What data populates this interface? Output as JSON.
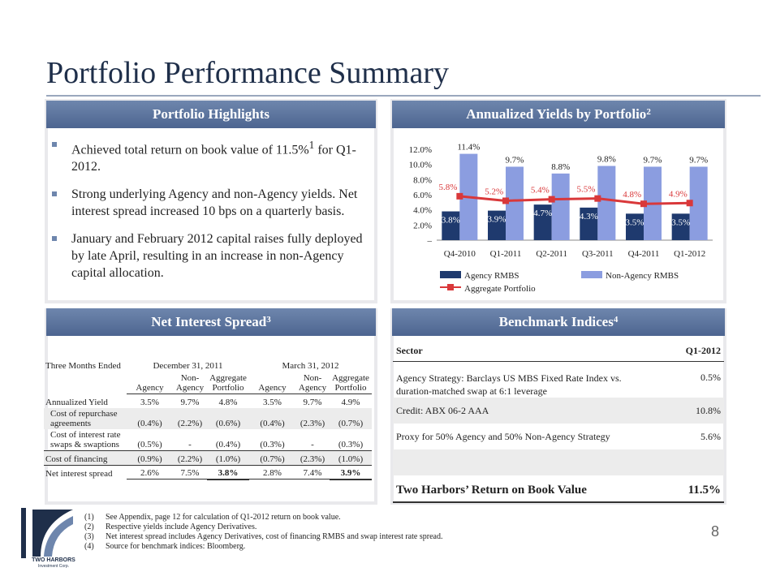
{
  "title": "Portfolio Performance Summary",
  "page_number": "8",
  "highlights": {
    "header": "Portfolio Highlights",
    "bullets": [
      {
        "text": "Achieved total return on book value of 11.5%",
        "sup": "1",
        "tail": " for Q1-2012."
      },
      {
        "text": "Strong underlying Agency and non-Agency  yields. Net interest spread increased 10 bps on a quarterly basis.",
        "sup": "",
        "tail": ""
      },
      {
        "text": "January and February 2012 capital raises fully deployed by late April, resulting in an increase in non-Agency capital allocation.",
        "sup": "",
        "tail": ""
      }
    ]
  },
  "yields": {
    "header": "Annualized Yields by Portfolio",
    "sup": "2"
  },
  "chart_data": {
    "type": "bar",
    "categories": [
      "Q4-2010",
      "Q1-2011",
      "Q2-2011",
      "Q3-2011",
      "Q4-2011",
      "Q1-2012"
    ],
    "series": [
      {
        "name": "Agency RMBS",
        "type": "bar",
        "color": "#1f3a6e",
        "values": [
          3.8,
          3.9,
          4.7,
          4.3,
          3.5,
          3.5
        ],
        "labels": [
          "3.8%",
          "3.9%",
          "4.7%",
          "4.3%",
          "3.5%",
          "3.5%"
        ]
      },
      {
        "name": "Non-Agency RMBS",
        "type": "bar",
        "color": "#8b9de0",
        "values": [
          11.4,
          9.7,
          8.8,
          9.8,
          9.7,
          9.7
        ],
        "labels": [
          "11.4%",
          "9.7%",
          "8.8%",
          "9.8%",
          "9.7%",
          "9.7%"
        ]
      },
      {
        "name": "Aggregate Portfolio",
        "type": "line",
        "color": "#d9383a",
        "values": [
          5.8,
          5.2,
          5.4,
          5.5,
          4.8,
          4.9
        ],
        "labels": [
          "5.8%",
          "5.2%",
          "5.4%",
          "5.5%",
          "4.8%",
          "4.9%"
        ]
      }
    ],
    "yticks": [
      "–",
      "2.0%",
      "4.0%",
      "6.0%",
      "8.0%",
      "10.0%",
      "12.0%"
    ],
    "ylim": [
      0,
      12
    ],
    "legend": "bottom"
  },
  "nis": {
    "header": "Net Interest Spread",
    "sup": "3",
    "period_label": "Three Months Ended",
    "period1": "December 31, 2011",
    "period2": "March 31, 2012",
    "cols": [
      "Agency",
      "Non-Agency",
      "Aggregate Portfolio",
      "Agency",
      "Non-Agency",
      "Aggregate Portfolio"
    ],
    "rows": [
      {
        "label": "Annualized Yield",
        "vals": [
          "3.5%",
          "9.7%",
          "4.8%",
          "3.5%",
          "9.7%",
          "4.9%"
        ]
      },
      {
        "label": "Cost of repurchase agreements",
        "vals": [
          "(0.4%)",
          "(2.2%)",
          "(0.6%)",
          "(0.4%)",
          "(2.3%)",
          "(0.7%)"
        ]
      },
      {
        "label": "Cost of interest rate swaps & swaptions",
        "vals": [
          "(0.5%)",
          "-",
          "(0.4%)",
          "(0.3%)",
          "-",
          "(0.3%)"
        ]
      },
      {
        "label": "Cost of financing",
        "vals": [
          "(0.9%)",
          "(2.2%)",
          "(1.0%)",
          "(0.7%)",
          "(2.3%)",
          "(1.0%)"
        ]
      },
      {
        "label": "Net interest spread",
        "vals": [
          "2.6%",
          "7.5%",
          "3.8%",
          "2.8%",
          "7.4%",
          "3.9%"
        ]
      }
    ]
  },
  "bench": {
    "header": "Benchmark Indices",
    "sup": "4",
    "col1": "Sector",
    "col2": "Q1-2012",
    "rows": [
      {
        "label": "Agency Strategy:  Barclays US MBS Fixed Rate Index vs. duration-matched swap at 6:1 leverage",
        "val": "0.5%"
      },
      {
        "label": "Credit:  ABX 06-2 AAA",
        "val": "10.8%"
      },
      {
        "label": "Proxy for 50% Agency and 50% Non-Agency Strategy",
        "val": "5.6%"
      },
      {
        "label": "",
        "val": ""
      }
    ],
    "total_label": "Two Harbors’ Return on Book Value",
    "total_val": "11.5%"
  },
  "footnotes": [
    {
      "n": "(1)",
      "t": "See Appendix, page 12 for calculation of Q1-2012 return on book value."
    },
    {
      "n": "(2)",
      "t": "Respective yields include Agency Derivatives."
    },
    {
      "n": "(3)",
      "t": "Net interest spread includes Agency Derivatives, cost of financing RMBS and swap interest rate spread."
    },
    {
      "n": "(4)",
      "t": "Source for benchmark indices:  Bloomberg."
    }
  ],
  "logo": {
    "name": "TWO HARBORS",
    "sub": "Investment Corp."
  }
}
